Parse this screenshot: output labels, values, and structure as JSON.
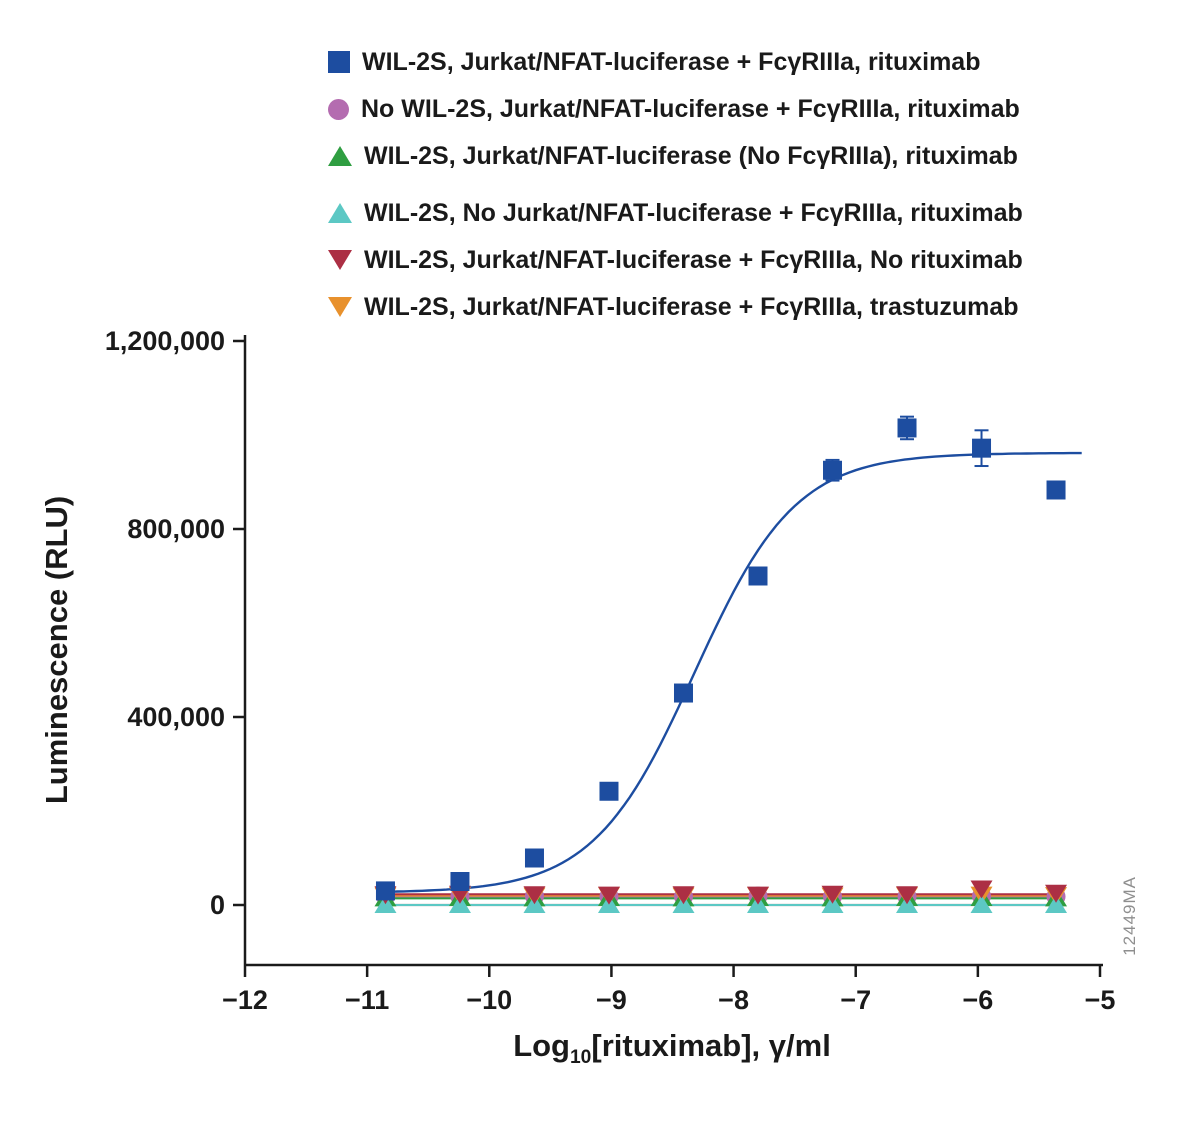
{
  "figure": {
    "watermark": "12449MA"
  },
  "chart_data": {
    "type": "scatter",
    "title": "",
    "xlabel": "Log10[rituximab], γ/ml",
    "xlabel_parts": {
      "prefix": "Log",
      "sub": "10",
      "rest": "[rituximab], γ/ml"
    },
    "ylabel": "Luminescence (RLU)",
    "xlim": [
      -12,
      -5
    ],
    "ylim": [
      0,
      1200000
    ],
    "grid": false,
    "legend_position": "top",
    "xticks": [
      -12,
      -11,
      -10,
      -9,
      -8,
      -7,
      -6,
      -5
    ],
    "xtick_labels": [
      "−12",
      "−11",
      "−10",
      "−9",
      "−8",
      "−7",
      "−6",
      "−5"
    ],
    "yticks": [
      0,
      400000,
      800000,
      1200000
    ],
    "ytick_labels": [
      "0",
      "400,000",
      "800,000",
      "1,200,000"
    ],
    "x": [
      -10.85,
      -10.24,
      -9.63,
      -9.02,
      -8.41,
      -7.8,
      -7.19,
      -6.58,
      -5.97,
      -5.36
    ],
    "baseline_fit": {
      "value": 0,
      "color": "#8a8a8a"
    },
    "series": [
      {
        "name": "WIL-2S, Jurkat/NFAT-luciferase + FcγRIIIa, rituximab",
        "marker": "square",
        "color": "#1d4da0",
        "values": [
          30000,
          50000,
          100000,
          242000,
          451000,
          700000,
          925000,
          1015000,
          972000,
          883000
        ],
        "errors": [
          6000,
          5000,
          6000,
          7000,
          9000,
          10000,
          22000,
          24000,
          38000,
          9000
        ],
        "fit": {
          "type": "sigmoid",
          "bottom": 26000,
          "top": 962000,
          "logEC50": -8.32,
          "hill": 1.05
        }
      },
      {
        "name": "No WIL-2S, Jurkat/NFAT-luciferase + FcγRIIIa, rituximab",
        "marker": "circle",
        "color": "#b46cb0",
        "values": [
          18000,
          18000,
          19000,
          18000,
          18000,
          19000,
          18000,
          18000,
          19000,
          18000
        ],
        "fit": {
          "type": "flat",
          "value": 18000
        }
      },
      {
        "name": "WIL-2S, Jurkat/NFAT-luciferase (No FcγRIIIa), rituximab",
        "marker": "triangle-up",
        "color": "#2f9e41",
        "values": [
          14000,
          15000,
          14000,
          15000,
          14000,
          15000,
          14000,
          15000,
          15000,
          14000
        ],
        "fit": {
          "type": "flat",
          "value": 14000
        }
      },
      {
        "name": "WIL-2S, No Jurkat/NFAT-luciferase + FcγRIIIa, rituximab",
        "marker": "triangle-up",
        "color": "#5cc8c4",
        "values": [
          0,
          0,
          0,
          0,
          0,
          0,
          0,
          0,
          0,
          0
        ],
        "fit": {
          "type": "flat",
          "value": 0
        }
      },
      {
        "name": "WIL-2S, Jurkat/NFAT-luciferase + FcγRIIIa, No rituximab",
        "marker": "triangle-down",
        "color": "#ac2f44",
        "values": [
          23000,
          24000,
          23000,
          22000,
          23000,
          22000,
          24000,
          23000,
          35000,
          26000
        ],
        "fit": {
          "type": "flat",
          "value": 23000
        }
      },
      {
        "name": "WIL-2S, Jurkat/NFAT-luciferase + FcγRIIIa, trastuzumab",
        "marker": "triangle-down",
        "color": "#e8912d",
        "values": [
          20000,
          21000,
          20000,
          21000,
          20000,
          21000,
          20000,
          21000,
          22000,
          21000
        ],
        "fit": {
          "type": "flat",
          "value": 20000
        }
      }
    ]
  }
}
